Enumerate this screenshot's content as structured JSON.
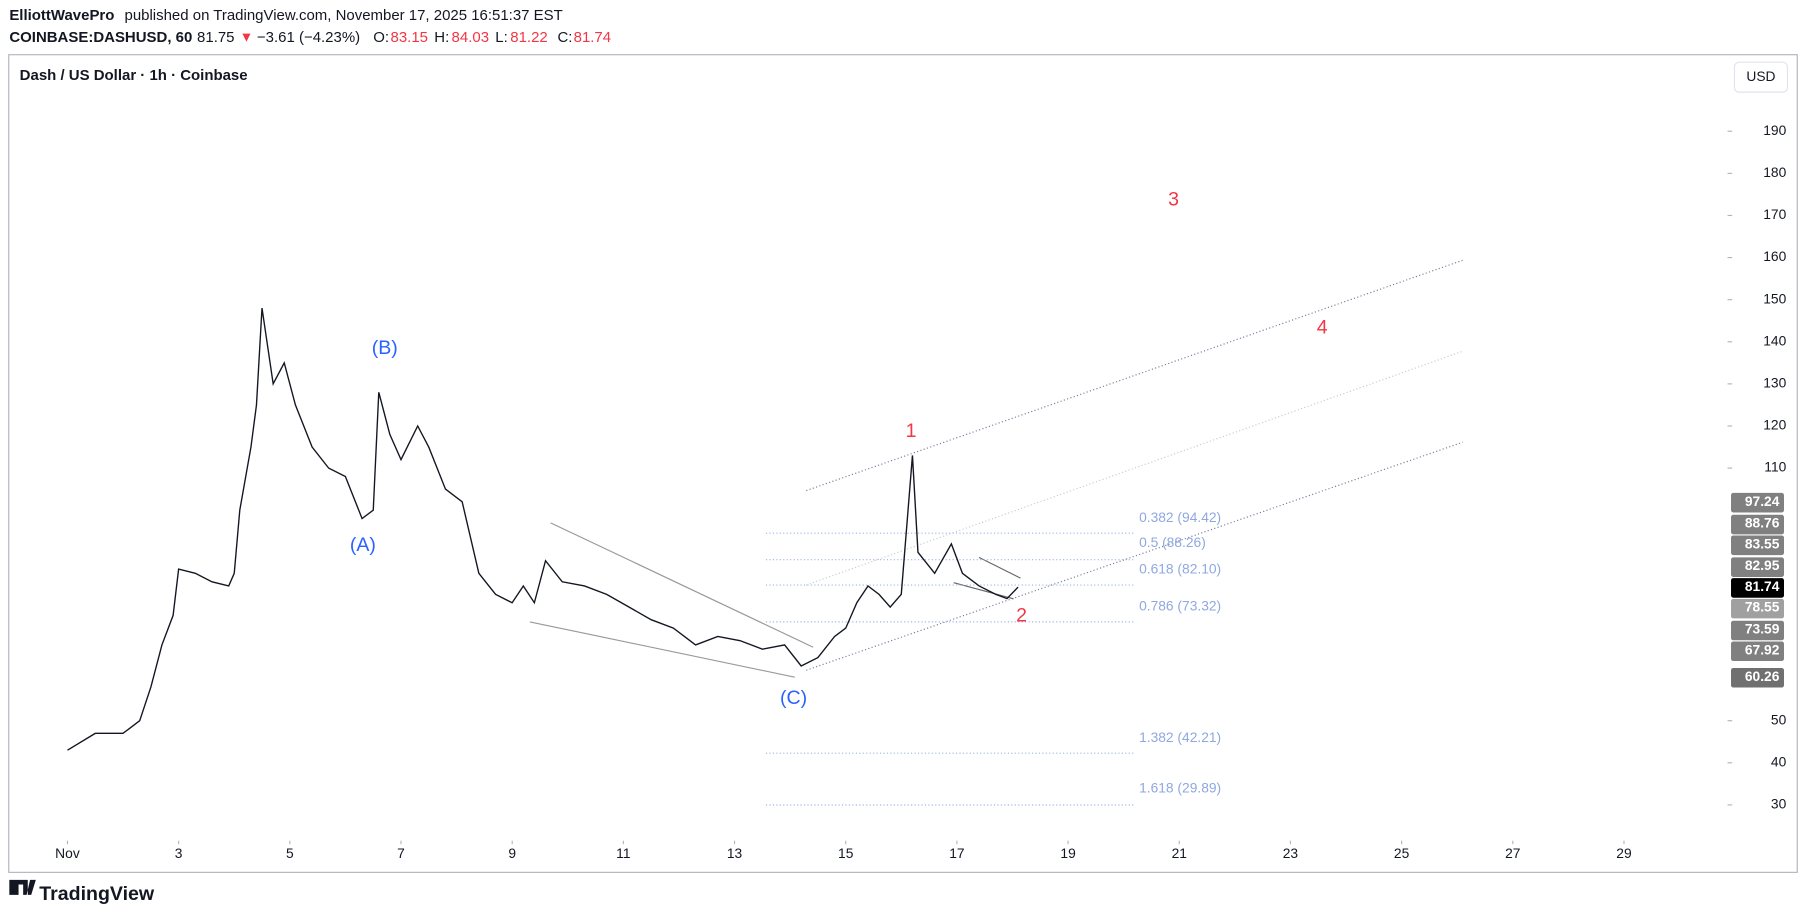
{
  "header": {
    "author": "ElliottWavePro",
    "published": "published on TradingView.com, November 17, 2025 16:51:37 EST",
    "symbol": "COINBASE:DASHUSD, 60",
    "last": "81.75",
    "arrow": "▼",
    "change": "−3.61 (−4.23%)",
    "o_label": "O:",
    "o": "83.15",
    "h_label": "H:",
    "h": "84.03",
    "l_label": "L:",
    "l": "81.22",
    "c_label": "C:",
    "c": "81.74"
  },
  "currency_button": "USD",
  "logo": "TradingView",
  "annotations": {
    "wave_labels": [
      "(A)",
      "(B)",
      "(C)",
      "1",
      "2",
      "3",
      "4"
    ],
    "fib_labels": [
      "0.382 (94.42)",
      "0.5 (88.26)",
      "0.618 (82.10)",
      "0.786 (73.32)",
      "1.382 (42.21)",
      "1.618 (29.89)"
    ],
    "price_labels": [
      "97.24",
      "88.76",
      "83.55",
      "82.95",
      "81.74",
      "78.55",
      "73.59",
      "67.92",
      "60.26"
    ]
  },
  "chart_data": {
    "type": "line",
    "title": "Dash / US Dollar · 1h · Coinbase",
    "color": "#131722",
    "x": [
      1.0,
      1.5,
      2.0,
      2.3,
      2.5,
      2.7,
      2.9,
      3.0,
      3.3,
      3.6,
      3.9,
      4.0,
      4.1,
      4.3,
      4.4,
      4.5,
      4.7,
      4.9,
      5.1,
      5.4,
      5.7,
      6.0,
      6.3,
      6.5,
      6.6,
      6.8,
      7.0,
      7.3,
      7.5,
      7.8,
      8.1,
      8.4,
      8.7,
      9.0,
      9.2,
      9.4,
      9.6,
      9.9,
      10.3,
      10.7,
      11.1,
      11.5,
      11.9,
      12.3,
      12.7,
      13.1,
      13.5,
      13.9,
      14.2,
      14.5,
      14.8,
      15.0,
      15.2,
      15.4,
      15.6,
      15.8,
      16.0,
      16.2,
      16.3,
      16.6,
      16.9,
      17.1,
      17.4,
      17.7,
      17.9,
      18.1
    ],
    "values": [
      43,
      47,
      47,
      50,
      58,
      68,
      75,
      86,
      85,
      83,
      82,
      85,
      100,
      115,
      125,
      148,
      130,
      135,
      125,
      115,
      110,
      108,
      98,
      100,
      128,
      118,
      112,
      120,
      115,
      105,
      102,
      85,
      80,
      78,
      82,
      78,
      88,
      83,
      82,
      80,
      77,
      74,
      72,
      68,
      70,
      69,
      67,
      68,
      63,
      65,
      70,
      72,
      78,
      82,
      80,
      77,
      80,
      113,
      90,
      85,
      92,
      85,
      82,
      80,
      79,
      81.74
    ],
    "xlim": [
      0,
      31
    ],
    "ylim": [
      21.5,
      207.5
    ],
    "xticks": [
      {
        "value": 1,
        "label": "Nov"
      },
      3,
      5,
      7,
      9,
      11,
      13,
      15,
      17,
      19,
      21,
      23,
      25,
      27,
      29
    ],
    "yticks": [
      30,
      40,
      50,
      110,
      120,
      130,
      140,
      150,
      160,
      170,
      180,
      190
    ]
  }
}
